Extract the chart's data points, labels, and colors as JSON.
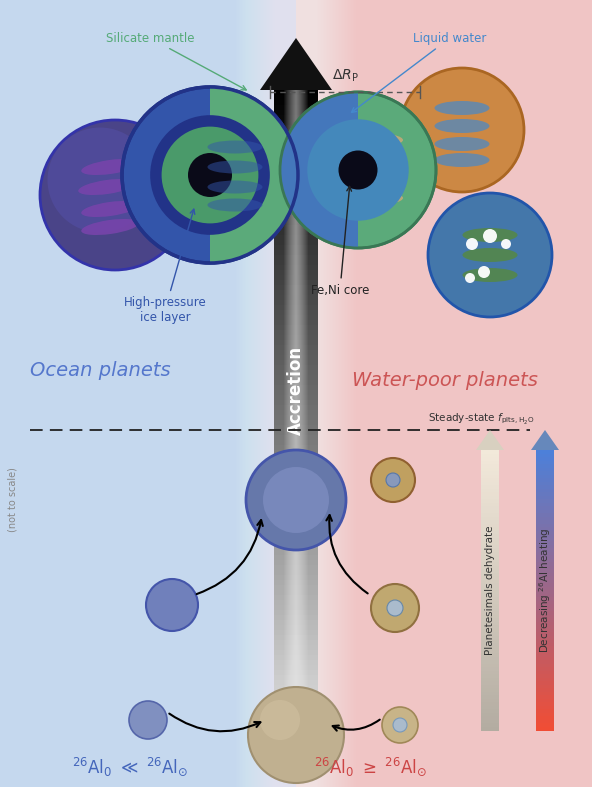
{
  "bg_left_color": "#c5d8ee",
  "bg_right_color": "#f0c5c5",
  "title_left": "Ocean planets",
  "title_right": "Water-poor planets",
  "label_left_bottom": "$^{26}$Al$_0$ $\\ll$ $^{26}$Al$_{\\odot}$",
  "label_right_bottom": "$^{26}$Al$_0$ $\\geq$ $^{26}$Al$_{\\odot}$",
  "label_side": "(not to scale)",
  "accretion_label": "Accretion",
  "dashed_line_label": "Steady-state $f_{\\mathrm{plts,H_2O}}$",
  "arrow_left_label": "Planetesimals dehydrate",
  "arrow_right_label": "Decreasing $^{26}$Al heating",
  "annotation_delta_rp": "$\\Delta R_{\\mathrm{P}}$",
  "annotation_silicate": "Silicate mantle",
  "annotation_liquid": "Liquid water",
  "annotation_hp_ice": "High-pressure\nice layer",
  "annotation_feni": "Fe,Ni core"
}
